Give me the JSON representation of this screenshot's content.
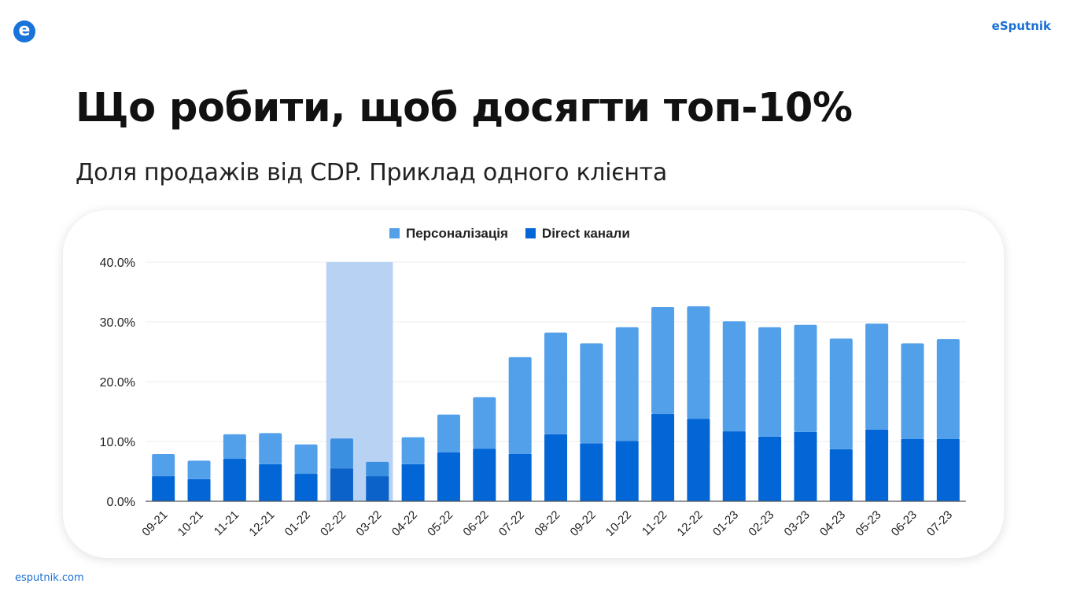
{
  "header": {
    "logo_glyph": "e",
    "brand": "eSputnik"
  },
  "title": "Що робити, щоб досягти топ-10%",
  "subtitle": "Доля продажів від CDP. Приклад одного клієнта",
  "footer": "esputnik.com",
  "chart_data": {
    "type": "bar",
    "stacked": true,
    "categories": [
      "09-21",
      "10-21",
      "11-21",
      "12-21",
      "01-22",
      "02-22",
      "03-22",
      "04-22",
      "05-22",
      "06-22",
      "07-22",
      "08-22",
      "09-22",
      "10-22",
      "11-22",
      "12-22",
      "01-23",
      "02-23",
      "03-23",
      "04-23",
      "05-23",
      "06-23",
      "07-23"
    ],
    "series": [
      {
        "name": "Direct канали",
        "color": "#0366d6",
        "values": [
          4.2,
          3.7,
          7.1,
          6.2,
          4.6,
          5.5,
          4.2,
          6.2,
          8.2,
          8.8,
          7.9,
          11.2,
          9.7,
          10.1,
          14.6,
          13.8,
          11.7,
          10.8,
          11.6,
          8.7,
          12.0,
          10.4,
          10.4
        ]
      },
      {
        "name": "Персоналізація",
        "color": "#52a0ea",
        "values": [
          3.7,
          3.1,
          4.1,
          5.2,
          4.9,
          5.0,
          2.4,
          4.5,
          6.3,
          8.6,
          16.2,
          17.0,
          16.7,
          19.0,
          17.9,
          18.8,
          18.4,
          18.3,
          17.9,
          18.5,
          17.7,
          16.0,
          16.7
        ]
      }
    ],
    "legend_order": [
      "Персоналізація",
      "Direct канали"
    ],
    "legend_placement": "top",
    "highlight": {
      "from": "02-22",
      "to": "03-22",
      "color": "#b8d2f3"
    },
    "y_ticks": [
      "0.0%",
      "10.0%",
      "20.0%",
      "30.0%",
      "40.0%"
    ],
    "ylim": [
      0,
      40
    ],
    "grid": true,
    "xlabel": "",
    "ylabel": ""
  }
}
